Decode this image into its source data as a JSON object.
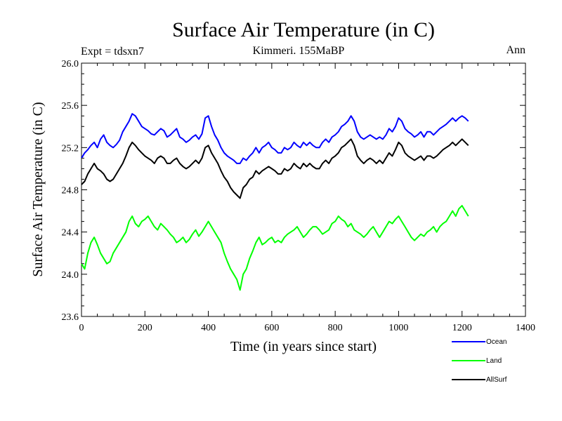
{
  "chart_data": {
    "type": "line",
    "title": "Surface Air Temperature (in C)",
    "subtitle_left": "Expt = tdsxn7",
    "subtitle_center": "Kimmeri. 155MaBP",
    "subtitle_right": "Ann",
    "xlabel": "Time (in years since start)",
    "ylabel": "Surface Air Temperature (in C)",
    "xlim": [
      0,
      1400
    ],
    "ylim": [
      23.6,
      26.0
    ],
    "xticks": [
      0,
      200,
      400,
      600,
      800,
      1000,
      1200,
      1400
    ],
    "xtick_labels": [
      "0",
      "200",
      "400",
      "600",
      "800",
      "1000",
      "1200",
      "1400"
    ],
    "yticks": [
      23.6,
      24.0,
      24.4,
      24.8,
      25.2,
      25.6,
      26.0
    ],
    "ytick_labels": [
      "23.6",
      "24.0",
      "24.4",
      "24.8",
      "25.2",
      "25.6",
      "26.0"
    ],
    "grid": false,
    "legend_position": "bottom-right, below plot",
    "x_start": 0,
    "x_step": 10,
    "series": [
      {
        "name": "Ocean",
        "color": "#0000ff",
        "values": [
          25.1,
          25.15,
          25.18,
          25.22,
          25.25,
          25.2,
          25.28,
          25.32,
          25.25,
          25.22,
          25.2,
          25.23,
          25.27,
          25.35,
          25.4,
          25.45,
          25.52,
          25.5,
          25.45,
          25.4,
          25.38,
          25.36,
          25.33,
          25.32,
          25.35,
          25.38,
          25.36,
          25.3,
          25.32,
          25.35,
          25.38,
          25.3,
          25.28,
          25.25,
          25.27,
          25.3,
          25.32,
          25.28,
          25.33,
          25.48,
          25.5,
          25.4,
          25.32,
          25.27,
          25.2,
          25.15,
          25.12,
          25.1,
          25.08,
          25.05,
          25.05,
          25.1,
          25.08,
          25.12,
          25.15,
          25.2,
          25.15,
          25.2,
          25.22,
          25.25,
          25.2,
          25.18,
          25.15,
          25.15,
          25.2,
          25.18,
          25.2,
          25.25,
          25.22,
          25.2,
          25.25,
          25.22,
          25.25,
          25.22,
          25.2,
          25.2,
          25.25,
          25.28,
          25.25,
          25.3,
          25.32,
          25.35,
          25.4,
          25.42,
          25.45,
          25.5,
          25.45,
          25.35,
          25.3,
          25.28,
          25.3,
          25.32,
          25.3,
          25.28,
          25.3,
          25.28,
          25.32,
          25.38,
          25.35,
          25.4,
          25.48,
          25.45,
          25.38,
          25.35,
          25.33,
          25.3,
          25.32,
          25.35,
          25.3,
          25.35,
          25.35,
          25.32,
          25.35,
          25.38,
          25.4,
          25.42,
          25.45,
          25.48,
          25.45,
          25.48,
          25.5,
          25.48,
          25.45
        ]
      },
      {
        "name": "Land",
        "color": "#00ff00",
        "values": [
          24.1,
          24.05,
          24.2,
          24.3,
          24.35,
          24.28,
          24.2,
          24.15,
          24.1,
          24.12,
          24.2,
          24.25,
          24.3,
          24.35,
          24.4,
          24.5,
          24.55,
          24.48,
          24.45,
          24.5,
          24.52,
          24.55,
          24.5,
          24.45,
          24.42,
          24.48,
          24.45,
          24.42,
          24.38,
          24.35,
          24.3,
          24.32,
          24.35,
          24.3,
          24.33,
          24.38,
          24.42,
          24.36,
          24.4,
          24.45,
          24.5,
          24.45,
          24.4,
          24.35,
          24.3,
          24.2,
          24.12,
          24.05,
          24.0,
          23.95,
          23.85,
          24.0,
          24.05,
          24.15,
          24.22,
          24.3,
          24.35,
          24.28,
          24.3,
          24.33,
          24.35,
          24.3,
          24.32,
          24.3,
          24.35,
          24.38,
          24.4,
          24.42,
          24.45,
          24.4,
          24.35,
          24.38,
          24.42,
          24.45,
          24.45,
          24.42,
          24.38,
          24.4,
          24.42,
          24.48,
          24.5,
          24.55,
          24.52,
          24.5,
          24.45,
          24.48,
          24.42,
          24.4,
          24.38,
          24.35,
          24.38,
          24.42,
          24.45,
          24.4,
          24.35,
          24.4,
          24.45,
          24.5,
          24.48,
          24.52,
          24.55,
          24.5,
          24.45,
          24.4,
          24.35,
          24.32,
          24.35,
          24.38,
          24.36,
          24.4,
          24.42,
          24.45,
          24.4,
          24.45,
          24.48,
          24.5,
          24.55,
          24.6,
          24.55,
          24.62,
          24.65,
          24.6,
          24.55
        ]
      },
      {
        "name": "AllSurf",
        "color": "#000000",
        "values": [
          24.85,
          24.88,
          24.95,
          25.0,
          25.05,
          25.0,
          24.98,
          24.95,
          24.9,
          24.88,
          24.9,
          24.95,
          25.0,
          25.05,
          25.12,
          25.2,
          25.25,
          25.22,
          25.18,
          25.15,
          25.12,
          25.1,
          25.08,
          25.05,
          25.1,
          25.12,
          25.1,
          25.05,
          25.05,
          25.08,
          25.1,
          25.05,
          25.02,
          25.0,
          25.02,
          25.05,
          25.08,
          25.05,
          25.1,
          25.2,
          25.22,
          25.15,
          25.1,
          25.05,
          24.98,
          24.92,
          24.88,
          24.82,
          24.78,
          24.75,
          24.72,
          24.82,
          24.85,
          24.9,
          24.92,
          24.98,
          24.95,
          24.98,
          25.0,
          25.02,
          25.0,
          24.98,
          24.95,
          24.95,
          25.0,
          24.98,
          25.0,
          25.05,
          25.02,
          25.0,
          25.05,
          25.02,
          25.05,
          25.02,
          25.0,
          25.0,
          25.05,
          25.08,
          25.05,
          25.1,
          25.12,
          25.15,
          25.2,
          25.22,
          25.25,
          25.28,
          25.22,
          25.12,
          25.08,
          25.05,
          25.08,
          25.1,
          25.08,
          25.05,
          25.08,
          25.05,
          25.1,
          25.15,
          25.12,
          25.18,
          25.25,
          25.22,
          25.15,
          25.12,
          25.1,
          25.08,
          25.1,
          25.12,
          25.08,
          25.12,
          25.12,
          25.1,
          25.12,
          25.15,
          25.18,
          25.2,
          25.22,
          25.25,
          25.22,
          25.25,
          25.28,
          25.25,
          25.22
        ]
      }
    ]
  }
}
